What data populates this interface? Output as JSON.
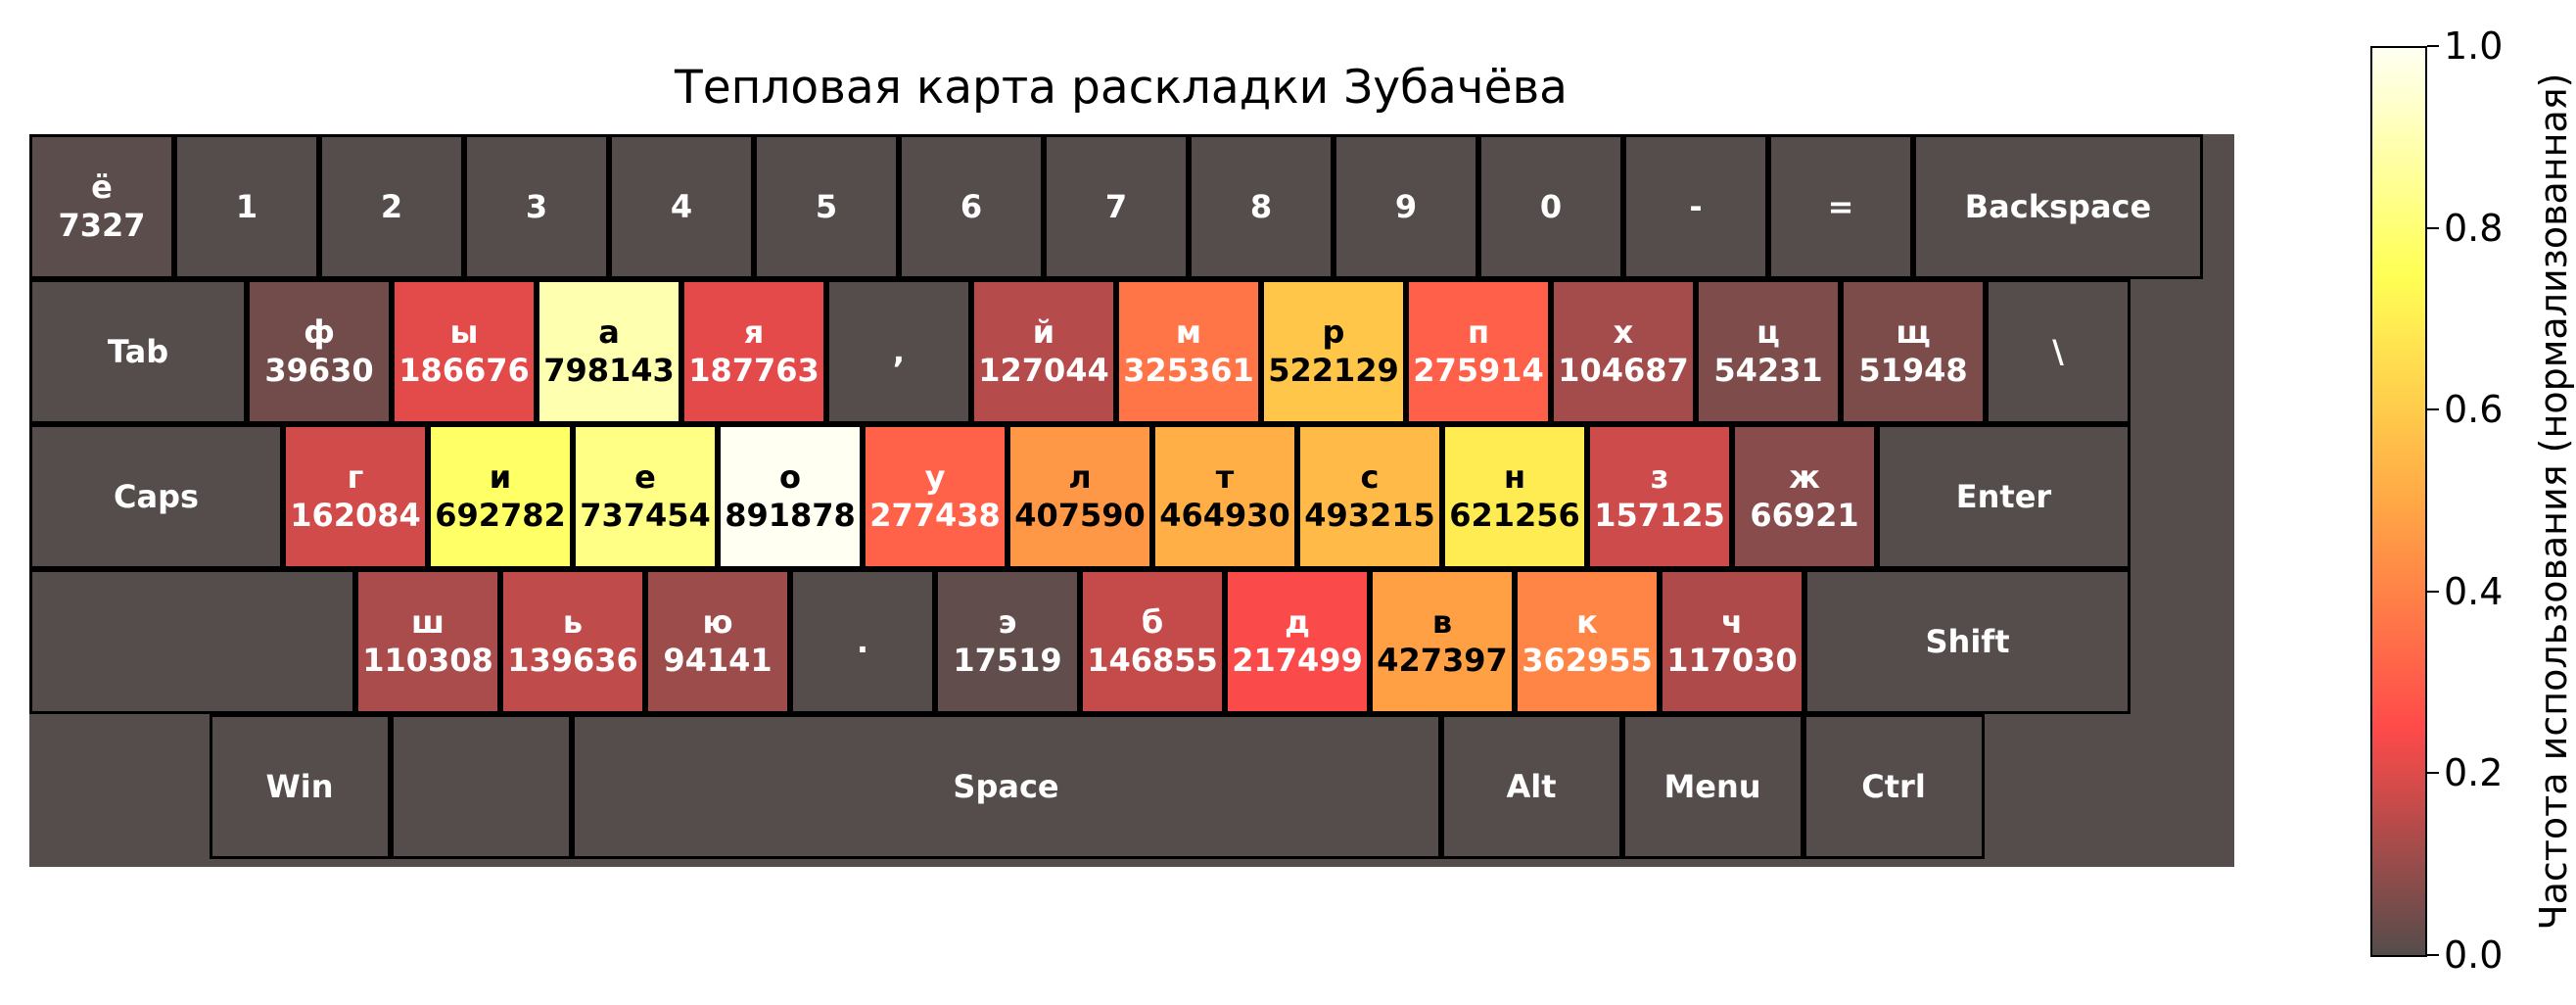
{
  "chart_data": {
    "type": "heatmap",
    "title": "Тепловая карта раскладки Зубачёва",
    "colorbar": {
      "label": "Частота использования (нормализованная)",
      "range": [
        0.0,
        1.0
      ],
      "ticks": [
        "0.0",
        "0.2",
        "0.4",
        "0.6",
        "0.8",
        "1.0"
      ],
      "colors": [
        "#544d4b",
        "#ff4a4a",
        "#ffa845",
        "#ffff55",
        "#fffff2"
      ]
    },
    "max_count": 891878,
    "rows": [
      [
        {
          "label": "ё",
          "count": 7327
        },
        {
          "label": "1"
        },
        {
          "label": "2"
        },
        {
          "label": "3"
        },
        {
          "label": "4"
        },
        {
          "label": "5"
        },
        {
          "label": "6"
        },
        {
          "label": "7"
        },
        {
          "label": "8"
        },
        {
          "label": "9"
        },
        {
          "label": "0"
        },
        {
          "label": "-"
        },
        {
          "label": "="
        },
        {
          "label": "Backspace"
        }
      ],
      [
        {
          "label": "Tab"
        },
        {
          "label": "ф",
          "count": 39630
        },
        {
          "label": "ы",
          "count": 186676
        },
        {
          "label": "а",
          "count": 798143
        },
        {
          "label": "я",
          "count": 187763
        },
        {
          "label": ","
        },
        {
          "label": "й",
          "count": 127044
        },
        {
          "label": "м",
          "count": 325361
        },
        {
          "label": "р",
          "count": 522129
        },
        {
          "label": "п",
          "count": 275914
        },
        {
          "label": "х",
          "count": 104687
        },
        {
          "label": "ц",
          "count": 54231
        },
        {
          "label": "щ",
          "count": 51948
        },
        {
          "label": "\\"
        }
      ],
      [
        {
          "label": "Caps"
        },
        {
          "label": "г",
          "count": 162084
        },
        {
          "label": "и",
          "count": 692782
        },
        {
          "label": "е",
          "count": 737454
        },
        {
          "label": "о",
          "count": 891878
        },
        {
          "label": "у",
          "count": 277438
        },
        {
          "label": "л",
          "count": 407590
        },
        {
          "label": "т",
          "count": 464930
        },
        {
          "label": "с",
          "count": 493215
        },
        {
          "label": "н",
          "count": 621256
        },
        {
          "label": "з",
          "count": 157125
        },
        {
          "label": "ж",
          "count": 66921
        },
        {
          "label": "Enter"
        }
      ],
      [
        {
          "label": ""
        },
        {
          "label": "ш",
          "count": 110308
        },
        {
          "label": "ь",
          "count": 139636
        },
        {
          "label": "ю",
          "count": 94141
        },
        {
          "label": "."
        },
        {
          "label": "э",
          "count": 17519
        },
        {
          "label": "б",
          "count": 146855
        },
        {
          "label": "д",
          "count": 217499
        },
        {
          "label": "в",
          "count": 427397
        },
        {
          "label": "к",
          "count": 362955
        },
        {
          "label": "ч",
          "count": 117030
        },
        {
          "label": "Shift"
        }
      ],
      [
        {
          "label": "Win"
        },
        {
          "label": ""
        },
        {
          "label": "Space"
        },
        {
          "label": "Alt"
        },
        {
          "label": "Menu"
        },
        {
          "label": "Ctrl"
        }
      ]
    ]
  }
}
